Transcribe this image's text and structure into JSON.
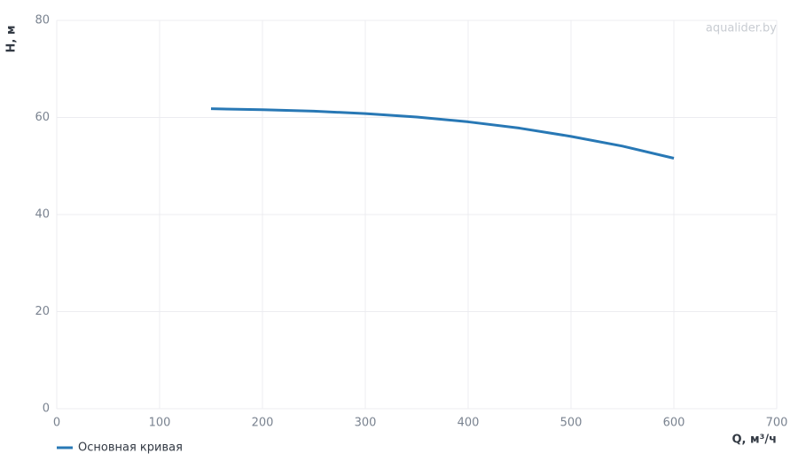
{
  "chart_data": {
    "type": "line",
    "x_label": "Q, м³/ч",
    "y_label": "H, м",
    "watermark": "aqualider.by",
    "x": [
      150,
      200,
      250,
      300,
      350,
      400,
      450,
      500,
      550,
      600
    ],
    "series": [
      {
        "name": "Основная кривая",
        "color": "#2878b5",
        "values": [
          61.8,
          61.6,
          61.3,
          60.8,
          60.1,
          59.1,
          57.8,
          56.1,
          54.1,
          51.6
        ]
      }
    ],
    "xlim": [
      0,
      700
    ],
    "xticks": [
      0,
      100,
      200,
      300,
      400,
      500,
      600,
      700
    ],
    "ylim": [
      0,
      80
    ],
    "yticks": [
      0,
      20,
      40,
      60,
      80
    ],
    "grid": true,
    "legend": "bottom-left"
  }
}
